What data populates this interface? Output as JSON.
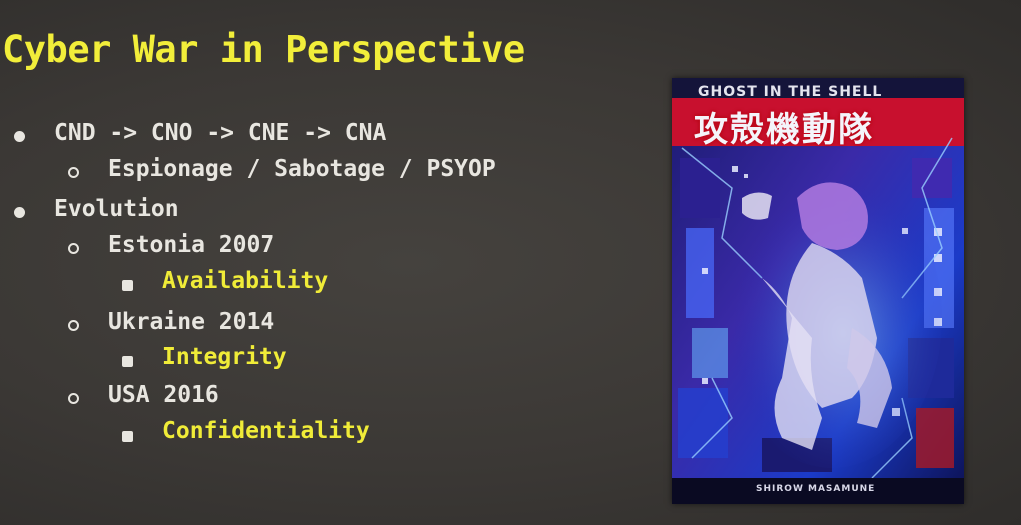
{
  "slide": {
    "title": "Cyber War in Perspective",
    "colors": {
      "background": "#3d3a37",
      "title": "#f2ee3a",
      "text": "#e8e6e0",
      "highlight": "#f0ec38"
    },
    "bullets": [
      {
        "level": 1,
        "marker": "disc",
        "text": "CND -> CNO -> CNE -> CNA",
        "highlight": false
      },
      {
        "level": 2,
        "marker": "circle",
        "text": "Espionage / Sabotage / PSYOP",
        "highlight": false
      },
      {
        "level": 1,
        "marker": "disc",
        "text": "Evolution",
        "highlight": false
      },
      {
        "level": 2,
        "marker": "circle",
        "text": "Estonia 2007",
        "highlight": false
      },
      {
        "level": 3,
        "marker": "square",
        "text": "Availability",
        "highlight": true
      },
      {
        "level": 2,
        "marker": "circle",
        "text": "Ukraine 2014",
        "highlight": false
      },
      {
        "level": 3,
        "marker": "square",
        "text": "Integrity",
        "highlight": true
      },
      {
        "level": 2,
        "marker": "circle",
        "text": "USA 2016",
        "highlight": false
      },
      {
        "level": 3,
        "marker": "square",
        "text": "Confidentiality",
        "highlight": true
      }
    ],
    "poster": {
      "heading": "GHOST IN THE SHELL",
      "kanji": "攻殻機動隊",
      "author": "SHIROW MASAMUNE"
    }
  }
}
